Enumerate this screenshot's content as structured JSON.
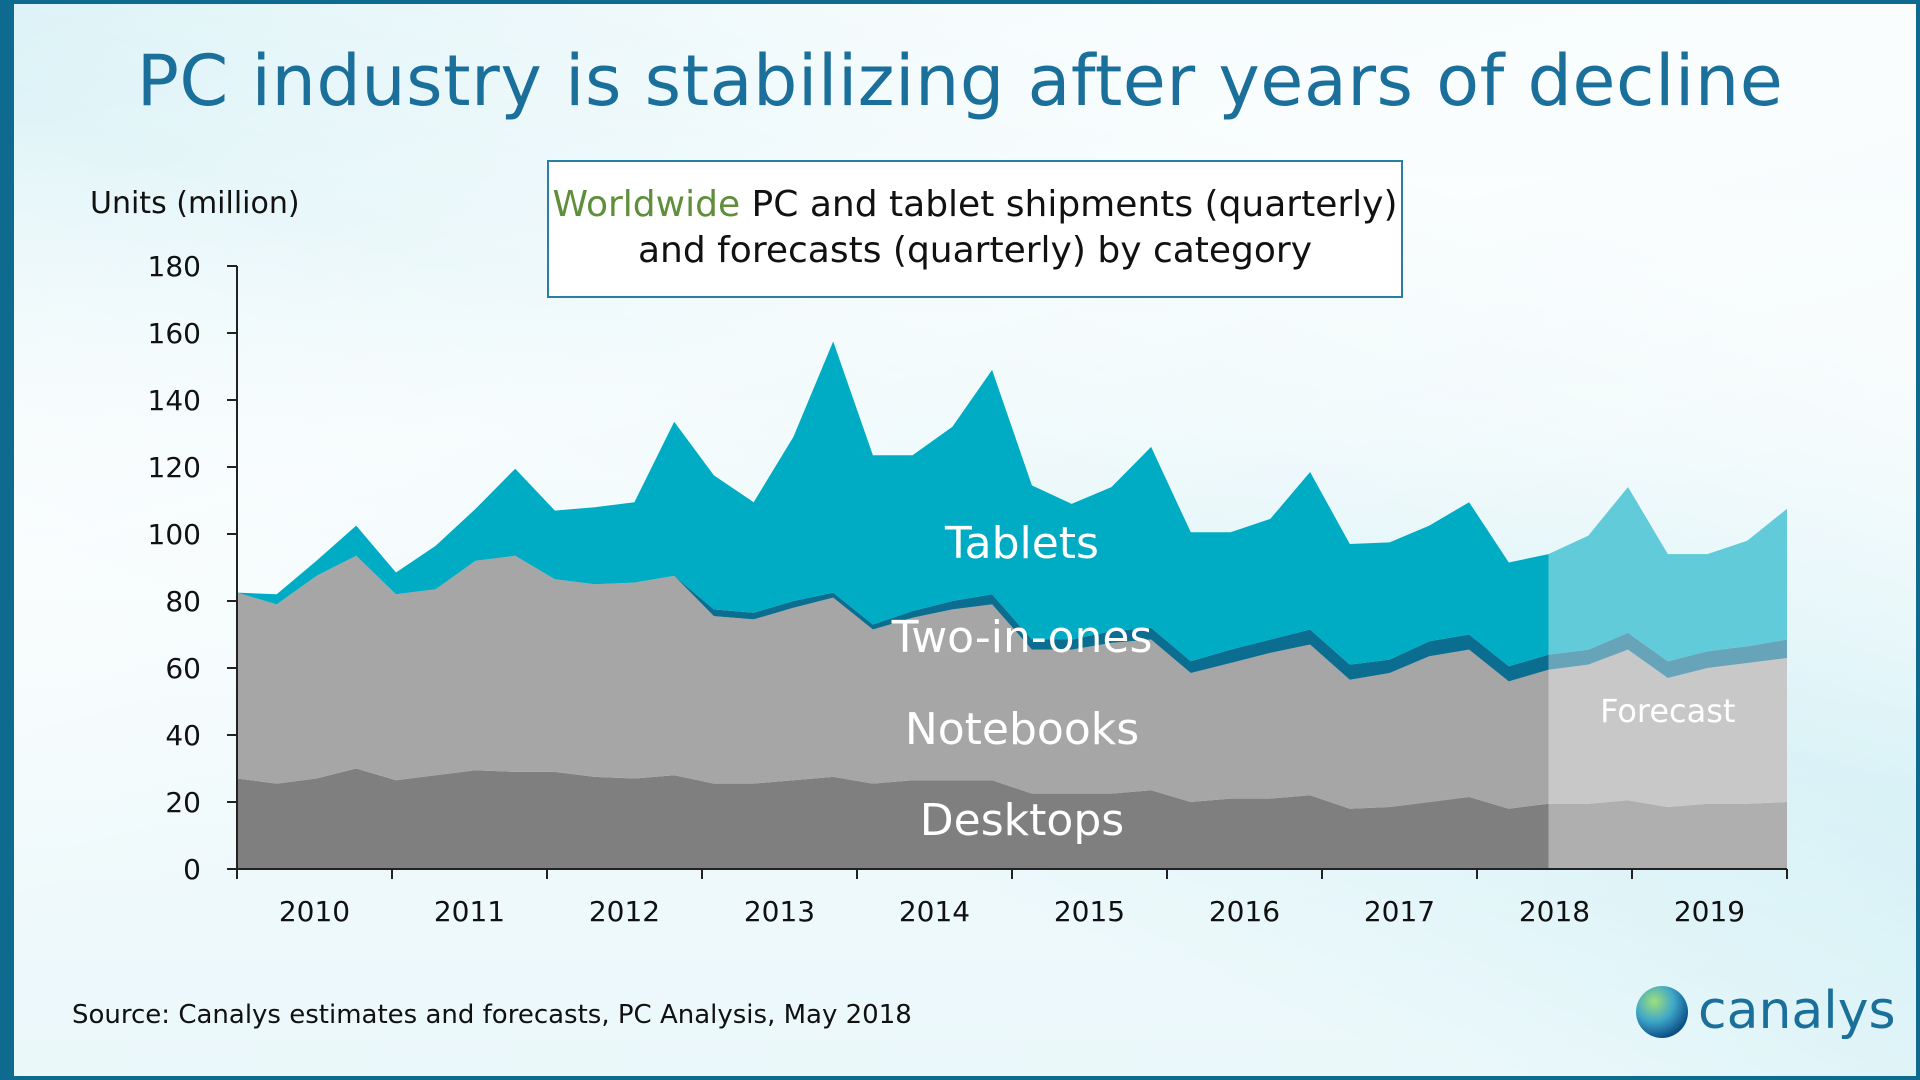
{
  "page": {
    "title": "PC industry is stabilizing after years of decline",
    "subtitle_highlight": "Worldwide",
    "subtitle_rest_line1": " PC and tablet shipments (quarterly)",
    "subtitle_line2": "and forecasts (quarterly) by category",
    "source": "Source: Canalys estimates and forecasts, PC Analysis, May 2018",
    "logo_text": "canalys"
  },
  "colors": {
    "desktops": "#7f7f7f",
    "notebooks": "#a6a6a6",
    "two_in_ones": "#0b6d8f",
    "tablets": "#00acc4",
    "axis": "#222222"
  },
  "icons": {
    "logo": "globe-icon"
  },
  "chart_data": {
    "type": "area",
    "stacked": true,
    "title": "Worldwide PC and tablet shipments (quarterly) and forecasts (quarterly) by category",
    "ylabel": "Units (million)",
    "xlabel": "",
    "ylim": [
      0,
      180
    ],
    "yticks": [
      0,
      20,
      40,
      60,
      80,
      100,
      120,
      140,
      160,
      180
    ],
    "years": [
      "2010",
      "2011",
      "2012",
      "2013",
      "2014",
      "2015",
      "2016",
      "2017",
      "2018",
      "2019"
    ],
    "quarters_per_year": 4,
    "forecast_from_quarter_index": 33,
    "forecast_label": "Forecast",
    "series": [
      {
        "name": "Desktops",
        "key": "desktops",
        "values": [
          27,
          25.5,
          27,
          30,
          26.5,
          28,
          29.5,
          29,
          29,
          27.5,
          27,
          28,
          25.5,
          25.5,
          26.5,
          27.5,
          25.5,
          26.5,
          26.5,
          26.5,
          22.5,
          22.5,
          22.5,
          23.5,
          20,
          21,
          21,
          22,
          18,
          18.5,
          20,
          21.5,
          18,
          19.5,
          19.5,
          20.5,
          18.5,
          19.5,
          19.5,
          20
        ]
      },
      {
        "name": "Notebooks",
        "key": "notebooks",
        "values": [
          55.5,
          53.5,
          60.5,
          63.5,
          55.5,
          55.5,
          62.5,
          64.5,
          57.5,
          57.5,
          58.5,
          59.5,
          50,
          49,
          51.5,
          53.5,
          46,
          48.5,
          51,
          52.5,
          43,
          43,
          45,
          45,
          38.5,
          40.5,
          43.5,
          45,
          38.5,
          40,
          43.5,
          44,
          38,
          40,
          41.5,
          45,
          38.5,
          40.5,
          42,
          43
        ]
      },
      {
        "name": "Two-in-ones",
        "key": "two_in_ones",
        "values": [
          0,
          0,
          0,
          0,
          0,
          0,
          0,
          0,
          0,
          0,
          0,
          0,
          2,
          2,
          2,
          1.5,
          1.5,
          2,
          2.5,
          3,
          3,
          3,
          3.5,
          3.5,
          3.5,
          4,
          4,
          4.5,
          4.5,
          4,
          4.5,
          4.5,
          4.5,
          4.5,
          4.5,
          5,
          5,
          5,
          5,
          5.5
        ]
      },
      {
        "name": "Tablets",
        "key": "tablets",
        "values": [
          0,
          3,
          4.5,
          9,
          6.5,
          13,
          15.5,
          26,
          20.5,
          23,
          24,
          46,
          40,
          33,
          49,
          75,
          50.5,
          46.5,
          52,
          67,
          46,
          40.5,
          43,
          54,
          38.5,
          35,
          36,
          47,
          36,
          35,
          34.5,
          39.5,
          31,
          30,
          34,
          43.5,
          32,
          29,
          31.5,
          39
        ]
      }
    ]
  }
}
